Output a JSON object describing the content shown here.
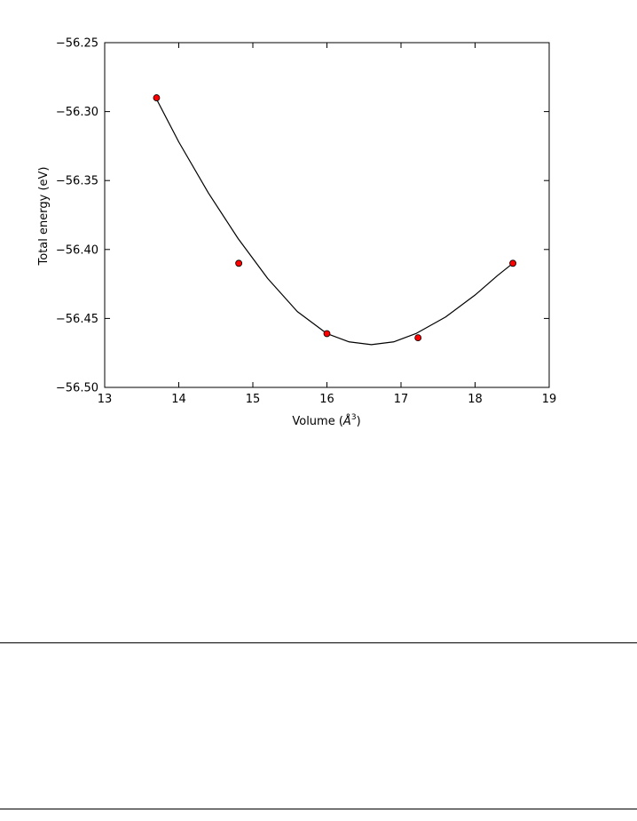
{
  "chart_data": {
    "type": "scatter",
    "title": "",
    "xlabel_prefix": "Volume (",
    "xlabel_unit": "Å",
    "xlabel_exp": "3",
    "xlabel_suffix": ")",
    "ylabel": "Total energy (eV)",
    "xlim": [
      13,
      19
    ],
    "ylim": [
      -56.5,
      -56.25
    ],
    "xticks": [
      13,
      14,
      15,
      16,
      17,
      18,
      19
    ],
    "xtick_labels": [
      "13",
      "14",
      "15",
      "16",
      "17",
      "18",
      "19"
    ],
    "yticks": [
      -56.25,
      -56.3,
      -56.35,
      -56.4,
      -56.45,
      -56.5
    ],
    "ytick_labels": [
      "−56.25",
      "−56.30",
      "−56.35",
      "−56.40",
      "−56.45",
      "−56.50"
    ],
    "grid": false,
    "series": [
      {
        "kind": "points",
        "color": "#ff0000",
        "x": [
          13.7,
          14.81,
          16.0,
          17.23,
          18.51
        ],
        "y": [
          -56.29,
          -56.41,
          -56.461,
          -56.464,
          -56.41
        ]
      },
      {
        "kind": "fit-curve",
        "color": "#000000",
        "x": [
          13.7,
          14.0,
          14.4,
          14.8,
          15.2,
          15.6,
          16.0,
          16.3,
          16.6,
          16.9,
          17.2,
          17.6,
          18.0,
          18.3,
          18.51
        ],
        "y": [
          -56.291,
          -56.322,
          -56.359,
          -56.392,
          -56.421,
          -56.445,
          -56.461,
          -56.467,
          -56.469,
          -56.467,
          -56.461,
          -56.449,
          -56.433,
          -56.419,
          -56.41
        ]
      }
    ]
  },
  "colors": {
    "points_fill": "#ff0000",
    "curve": "#000000",
    "axes": "#000000"
  }
}
